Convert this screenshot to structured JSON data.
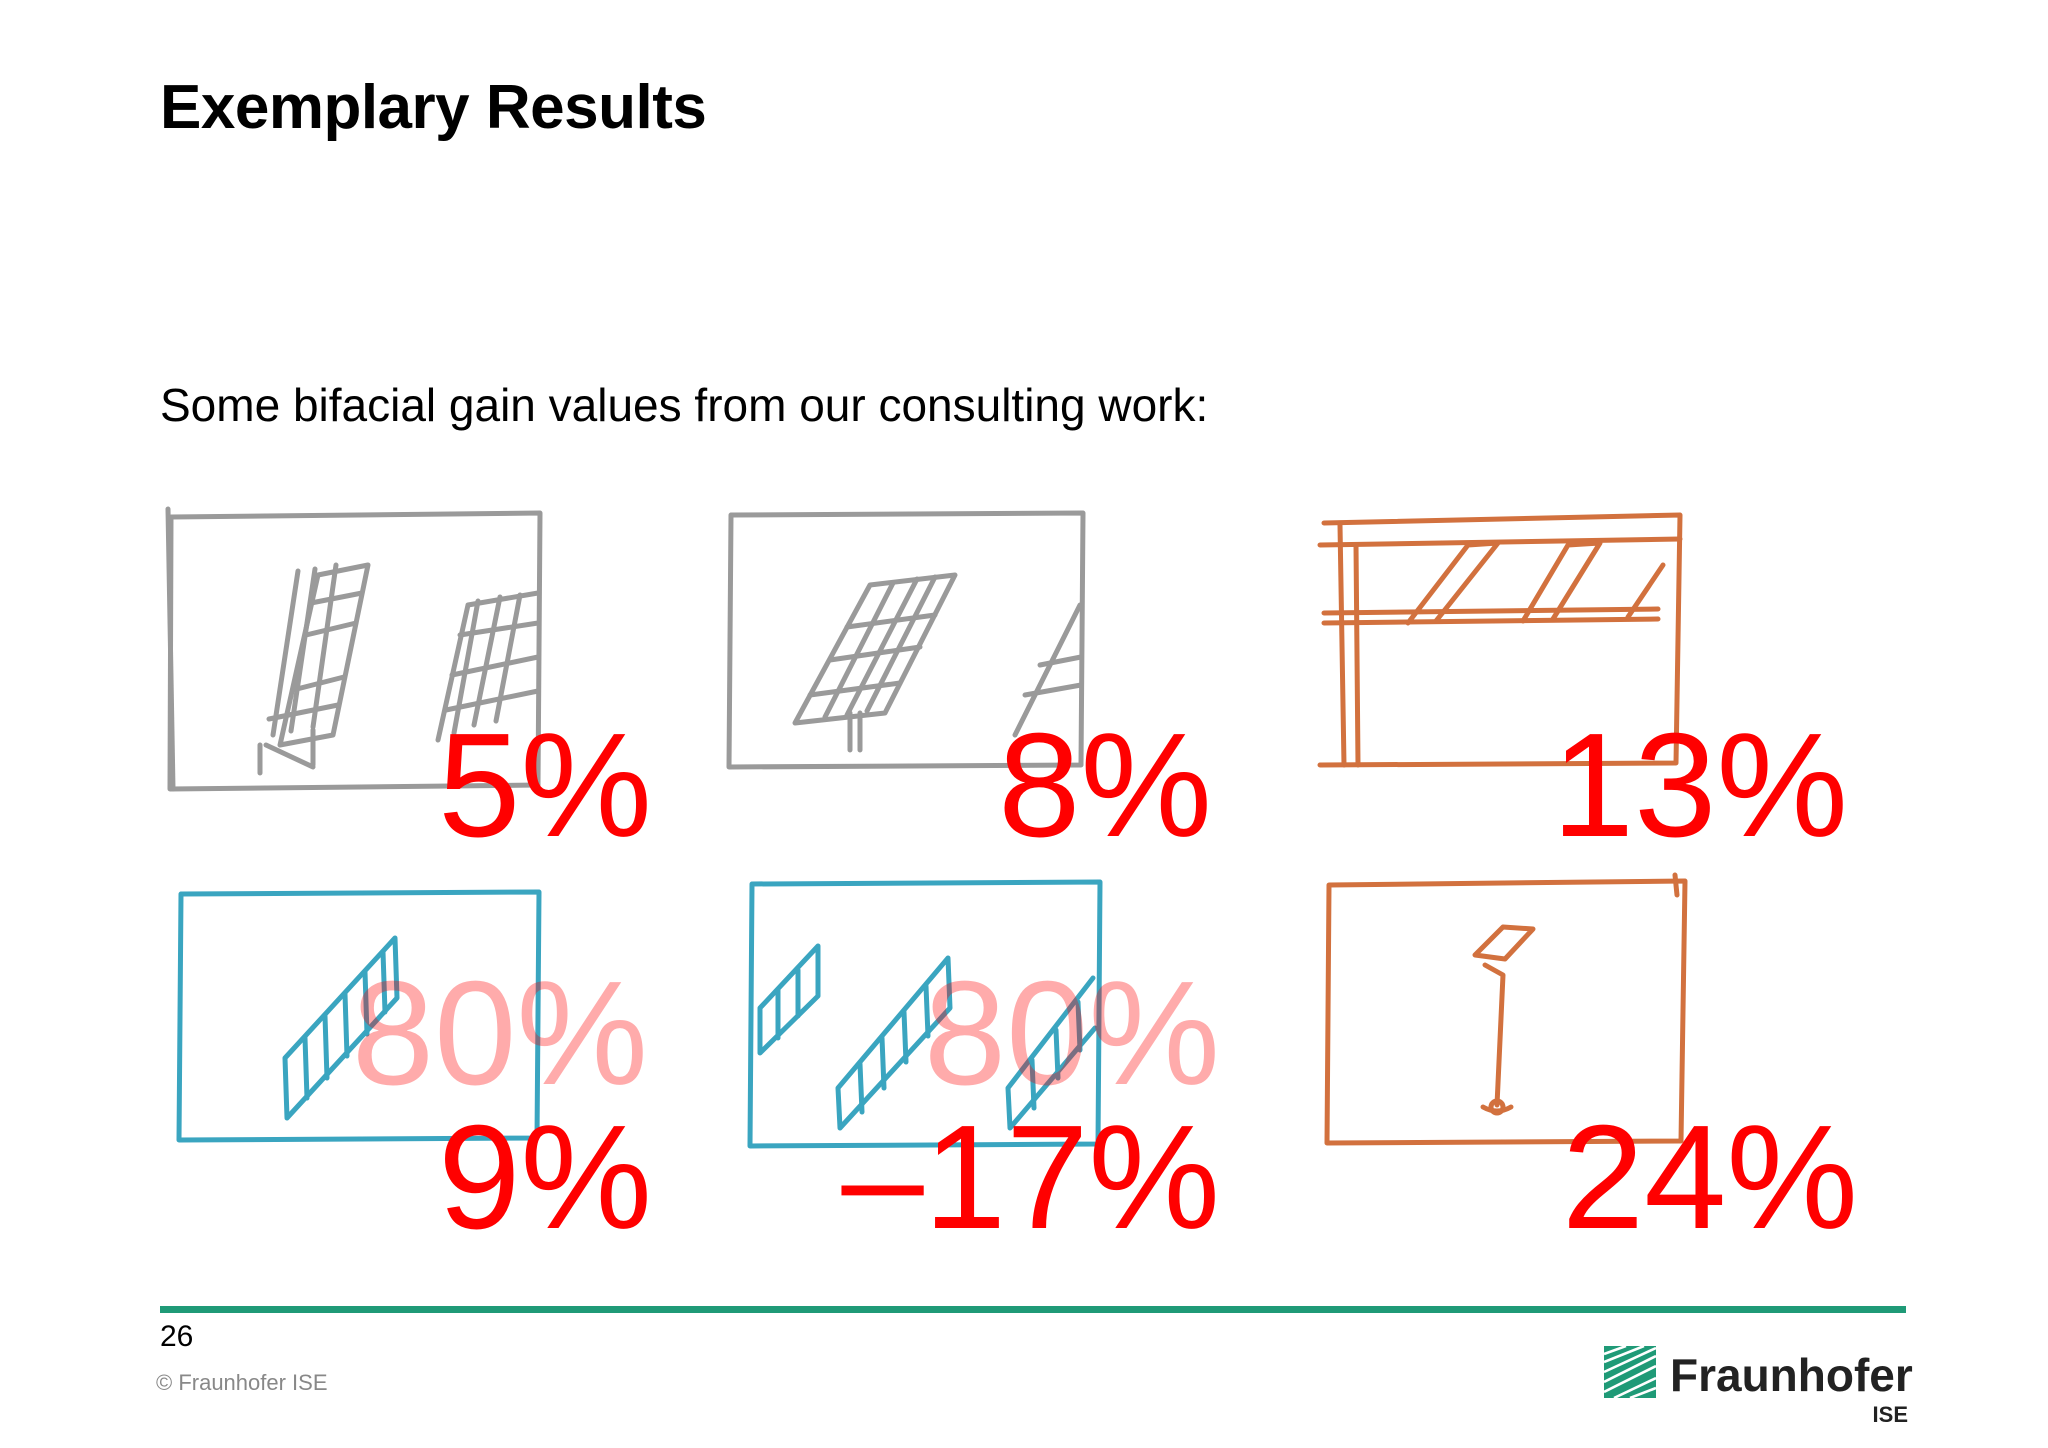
{
  "slide": {
    "title": "Exemplary Results",
    "subtitle": "Some bifacial gain values from our consulting work:",
    "page_number": "26",
    "copyright": "© Fraunhofer ISE"
  },
  "logo": {
    "name": "Fraunhofer",
    "sub": "ISE"
  },
  "colors": {
    "red": "#ff0000",
    "gray_sketch": "#9a9a9a",
    "orange_sketch": "#d2713e",
    "blue_sketch": "#3aa5c0",
    "rule_green": "#1f9a77"
  },
  "scenarios": [
    {
      "gain": "5%",
      "sketch": "ground-mounted-tilted-panels-sketch"
    },
    {
      "gain": "8%",
      "sketch": "single-pole-tilted-panels-sketch"
    },
    {
      "gain": "13%",
      "sketch": "carport-roof-panels-sketch"
    },
    {
      "gain": "9%",
      "sketch": "vertical-rack-sketch",
      "overlay": "80%"
    },
    {
      "gain": "–17%",
      "sketch": "double-vertical-rack-sketch",
      "overlay": "80%"
    },
    {
      "gain": "24%",
      "sketch": "pole-mounted-panel-sketch"
    }
  ]
}
